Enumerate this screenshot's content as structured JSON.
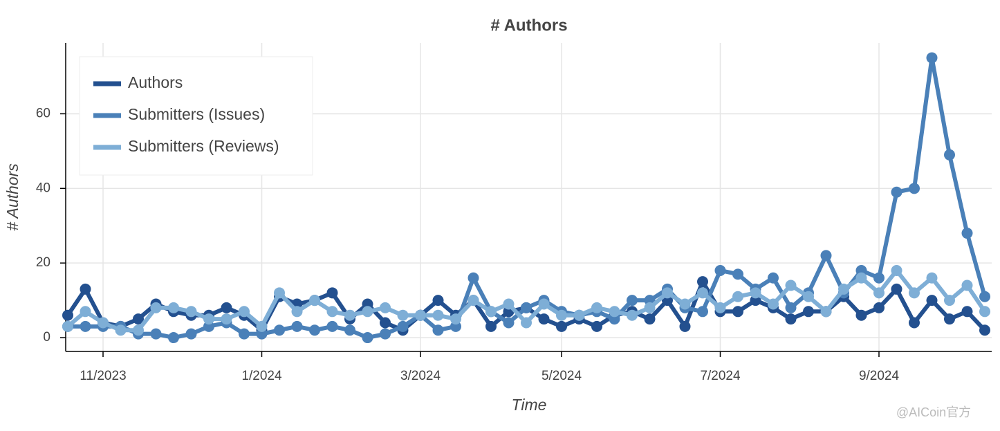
{
  "chart_data": {
    "type": "line",
    "title": "# Authors",
    "x_label": "Time",
    "y_label": "# Authors",
    "categories": [
      null,
      null,
      "11/2023",
      null,
      null,
      null,
      null,
      null,
      null,
      null,
      null,
      "1/2024",
      null,
      null,
      null,
      null,
      null,
      null,
      null,
      null,
      "3/2024",
      null,
      null,
      null,
      null,
      null,
      null,
      null,
      "5/2024",
      null,
      null,
      null,
      null,
      null,
      null,
      null,
      null,
      "7/2024",
      null,
      null,
      null,
      null,
      null,
      null,
      null,
      null,
      "9/2024",
      null,
      null,
      null,
      null,
      null,
      null
    ],
    "series": [
      {
        "name": "Authors",
        "color": "#23508f",
        "values": [
          6,
          13,
          4,
          3,
          5,
          9,
          7,
          6,
          6,
          8,
          6,
          2,
          11,
          9,
          10,
          12,
          5,
          9,
          4,
          2,
          6,
          10,
          6,
          10,
          3,
          7,
          8,
          5,
          3,
          5,
          3,
          6,
          7,
          5,
          10,
          3,
          15,
          7,
          7,
          10,
          8,
          5,
          7,
          7,
          11,
          6,
          8,
          13,
          4,
          10,
          5,
          7,
          2
        ]
      },
      {
        "name": "Submitters (Issues)",
        "color": "#4a80b8",
        "values": [
          3,
          3,
          3,
          3,
          1,
          1,
          0,
          1,
          3,
          4,
          1,
          1,
          2,
          3,
          2,
          3,
          2,
          0,
          1,
          3,
          6,
          2,
          3,
          16,
          7,
          4,
          8,
          10,
          7,
          6,
          7,
          5,
          10,
          10,
          13,
          8,
          7,
          18,
          17,
          13,
          16,
          8,
          12,
          22,
          12,
          18,
          16,
          39,
          40,
          75,
          49,
          28,
          11
        ]
      },
      {
        "name": "Submitters (Reviews)",
        "color": "#7eaed6",
        "values": [
          3,
          7,
          4,
          2,
          2,
          8,
          8,
          7,
          5,
          5,
          7,
          3,
          12,
          7,
          10,
          7,
          6,
          7,
          8,
          6,
          6,
          6,
          5,
          10,
          7,
          9,
          4,
          9,
          6,
          6,
          8,
          7,
          6,
          8,
          12,
          9,
          12,
          8,
          11,
          12,
          9,
          14,
          11,
          7,
          13,
          16,
          12,
          18,
          12,
          16,
          10,
          14,
          7
        ]
      }
    ],
    "ylim": [
      -3.7,
      79
    ],
    "yticks": [
      0,
      20,
      40,
      60
    ],
    "grid": true,
    "legend": "top-left"
  },
  "watermark": "@AICoin官方"
}
